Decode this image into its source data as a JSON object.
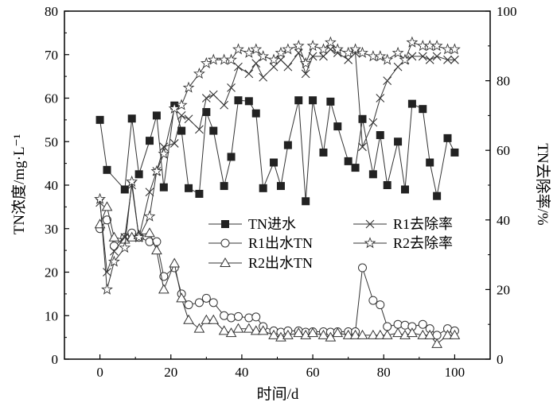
{
  "chart_data": {
    "type": "line",
    "xlabel": "时间/d",
    "ylabel_left": "TN浓度/mg·L⁻¹",
    "ylabel_right": "TN去除率/%",
    "xlim": [
      -10,
      110
    ],
    "ylim_left": [
      0,
      80
    ],
    "ylim_right": [
      0,
      100
    ],
    "x_ticks": [
      0,
      20,
      40,
      60,
      80,
      100
    ],
    "y_left_ticks": [
      0,
      10,
      20,
      30,
      40,
      50,
      60,
      70,
      80
    ],
    "y_right_ticks": [
      0,
      20,
      40,
      60,
      80,
      100
    ],
    "grid": false,
    "legend_position": "center",
    "series": [
      {
        "name": "TN进水",
        "axis": "left",
        "marker": "filled-square",
        "x": [
          0,
          2,
          7,
          9,
          11,
          14,
          16,
          18,
          21,
          23,
          25,
          28,
          30,
          32,
          35,
          37,
          39,
          42,
          44,
          46,
          49,
          51,
          53,
          56,
          58,
          60,
          63,
          65,
          67,
          70,
          72,
          74,
          77,
          79,
          81,
          84,
          86,
          88,
          91,
          93,
          95,
          98,
          100
        ],
        "values": [
          55,
          43.5,
          39,
          55.3,
          42.5,
          50.2,
          56,
          39.5,
          58.3,
          52.5,
          39.3,
          38,
          56.8,
          52.5,
          39.8,
          46.5,
          59.5,
          59.3,
          56.5,
          39.3,
          45.2,
          39.8,
          49.2,
          59.5,
          36.3,
          59.5,
          47.5,
          59.2,
          53.5,
          45.5,
          44,
          55.2,
          42.5,
          51.5,
          40,
          50,
          39,
          58.7,
          57.5,
          45.2,
          37.5,
          50.8,
          47.5
        ]
      },
      {
        "name": "R1出水TN",
        "axis": "left",
        "marker": "open-circle",
        "x": [
          0,
          2,
          4,
          7,
          9,
          11,
          14,
          16,
          18,
          21,
          23,
          25,
          28,
          30,
          32,
          35,
          37,
          39,
          42,
          44,
          46,
          49,
          51,
          53,
          56,
          58,
          60,
          63,
          65,
          67,
          70,
          72,
          74,
          77,
          79,
          81,
          84,
          86,
          88,
          91,
          93,
          95,
          98,
          100
        ],
        "values": [
          30,
          32,
          26,
          28,
          29,
          28,
          27,
          27,
          19,
          21,
          15,
          12.5,
          13,
          14,
          13,
          10,
          9.5,
          9.8,
          9.5,
          9.7,
          7.5,
          6.5,
          6.2,
          6.5,
          6.5,
          6.2,
          6.3,
          6.3,
          6.2,
          6.3,
          6.3,
          6.3,
          21,
          13.5,
          12.5,
          7.5,
          8,
          7.8,
          7.5,
          8,
          7,
          5.5,
          7,
          6.5
        ]
      },
      {
        "name": "R2出水TN",
        "axis": "left",
        "marker": "open-triangle",
        "x": [
          0,
          2,
          4,
          7,
          9,
          11,
          14,
          16,
          18,
          21,
          23,
          25,
          28,
          30,
          32,
          35,
          37,
          39,
          42,
          44,
          46,
          49,
          51,
          53,
          56,
          58,
          60,
          63,
          65,
          67,
          70,
          72,
          74,
          77,
          79,
          81,
          84,
          86,
          88,
          91,
          93,
          95,
          98,
          100
        ],
        "values": [
          31,
          35,
          28,
          27.5,
          28,
          28.5,
          29,
          25,
          16,
          22,
          14,
          9,
          7,
          9,
          9,
          6.5,
          6,
          7,
          7,
          6.5,
          6.5,
          5.5,
          5,
          5.5,
          6,
          5.5,
          6,
          5.5,
          5,
          6,
          5.5,
          5.5,
          5.5,
          5.5,
          5.5,
          5.5,
          6,
          5.5,
          6,
          5.5,
          5.5,
          3.5,
          5.5,
          5.5
        ]
      },
      {
        "name": "R1去除率",
        "axis": "right",
        "marker": "x-cross",
        "x": [
          0,
          2,
          4,
          7,
          9,
          11,
          14,
          16,
          18,
          21,
          23,
          25,
          28,
          30,
          32,
          35,
          37,
          39,
          42,
          44,
          46,
          49,
          51,
          53,
          56,
          58,
          60,
          63,
          65,
          67,
          70,
          72,
          74,
          77,
          79,
          81,
          84,
          86,
          88,
          91,
          93,
          95,
          98,
          100
        ],
        "values": [
          45,
          25,
          31,
          35,
          50,
          35,
          48,
          54,
          61,
          62,
          70,
          69,
          66,
          75,
          76,
          73,
          78,
          84,
          82,
          85,
          81,
          84,
          86,
          84,
          88,
          82,
          87,
          87,
          89,
          88,
          86,
          88,
          61,
          68,
          75,
          80,
          84,
          86,
          87,
          87,
          86,
          87,
          86,
          86
        ]
      },
      {
        "name": "R2去除率",
        "axis": "right",
        "marker": "open-star",
        "x": [
          0,
          2,
          4,
          7,
          9,
          11,
          14,
          16,
          18,
          21,
          23,
          25,
          28,
          30,
          32,
          35,
          37,
          39,
          42,
          44,
          46,
          49,
          51,
          53,
          56,
          58,
          60,
          63,
          65,
          67,
          70,
          72,
          74,
          77,
          79,
          81,
          84,
          86,
          88,
          91,
          93,
          95,
          98,
          100
        ],
        "values": [
          46,
          20,
          28,
          32,
          51,
          35,
          41,
          54,
          59,
          72,
          73,
          78,
          82,
          85,
          86,
          86,
          86,
          89,
          88,
          89,
          87,
          86,
          88,
          89,
          90,
          85,
          90,
          89,
          91,
          89,
          88,
          89,
          88,
          87,
          87,
          86,
          88,
          86,
          91,
          90,
          90,
          90,
          89,
          89
        ]
      }
    ]
  }
}
